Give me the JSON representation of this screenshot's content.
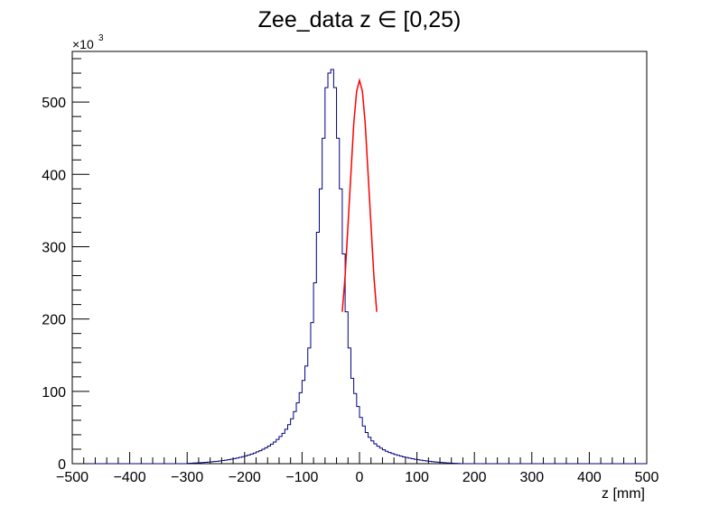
{
  "chart_data": {
    "type": "histogram",
    "title": "Zee_data z ∈ [0,25)",
    "xlabel": "z [mm]",
    "ylabel": "",
    "y_multiplier": "×10",
    "y_multiplier_exp": "3",
    "xlim": [
      -500,
      500
    ],
    "ylim": [
      0,
      570000
    ],
    "x_ticks": [
      -500,
      -400,
      -300,
      -200,
      -100,
      0,
      100,
      200,
      300,
      400,
      500
    ],
    "x_tick_labels": [
      "−500",
      "−400",
      "−300",
      "−200",
      "−100",
      "0",
      "100",
      "200",
      "300",
      "400",
      "500"
    ],
    "y_ticks": [
      0,
      100000,
      200000,
      300000,
      400000,
      500000
    ],
    "y_tick_labels": [
      "0",
      "100",
      "200",
      "300",
      "400",
      "500"
    ],
    "grid": false,
    "bin_width": 5,
    "series": [
      {
        "color": "#00007f",
        "style": "step",
        "bin_low_edges": [
          -500,
          -495,
          -490,
          -485,
          -480,
          -475,
          -470,
          -465,
          -460,
          -455,
          -450,
          -445,
          -440,
          -435,
          -430,
          -425,
          -420,
          -415,
          -410,
          -405,
          -400,
          -395,
          -390,
          -385,
          -380,
          -375,
          -370,
          -365,
          -360,
          -355,
          -350,
          -345,
          -340,
          -335,
          -330,
          -325,
          -320,
          -315,
          -310,
          -305,
          -300,
          -295,
          -290,
          -285,
          -280,
          -275,
          -270,
          -265,
          -260,
          -255,
          -250,
          -245,
          -240,
          -235,
          -230,
          -225,
          -220,
          -215,
          -210,
          -205,
          -200,
          -195,
          -190,
          -185,
          -180,
          -175,
          -170,
          -165,
          -160,
          -155,
          -150,
          -145,
          -140,
          -135,
          -130,
          -125,
          -120,
          -115,
          -110,
          -105,
          -100,
          -95,
          -90,
          -85,
          -80,
          -75,
          -70,
          -65,
          -60,
          -55,
          -50,
          -45,
          -40,
          -35,
          -30,
          -25,
          -20,
          -15,
          -10,
          -5,
          0,
          5,
          10,
          15,
          20,
          25,
          30,
          35,
          40,
          45,
          50,
          55,
          60,
          65,
          70,
          75,
          80,
          85,
          90,
          95,
          100,
          105,
          110,
          115,
          120,
          125,
          130,
          135,
          140,
          145,
          150,
          155,
          160,
          165,
          170,
          175,
          180,
          185,
          190,
          195,
          200,
          205,
          210,
          215,
          220,
          225,
          230,
          235,
          240,
          245,
          250,
          255,
          260,
          265,
          270,
          275,
          280,
          285,
          290,
          295,
          300,
          305,
          310,
          315,
          320,
          325,
          330,
          335,
          340,
          345,
          350,
          355,
          360,
          365,
          370,
          375,
          380,
          385,
          390,
          395,
          400,
          405,
          410,
          415,
          420,
          425,
          430,
          435,
          440,
          445,
          450,
          455,
          460,
          465,
          470,
          475,
          480,
          485,
          490,
          495
        ],
        "values": [
          0,
          0,
          0,
          0,
          0,
          0,
          0,
          0,
          0,
          0,
          0,
          0,
          0,
          0,
          0,
          0,
          0,
          0,
          0,
          0,
          0,
          0,
          0,
          0,
          0,
          0,
          0,
          0,
          0,
          0,
          0,
          0,
          0,
          0,
          0,
          0,
          0,
          0,
          0,
          0,
          500,
          700,
          900,
          1100,
          1300,
          1600,
          1900,
          2200,
          2500,
          2900,
          3300,
          3800,
          4300,
          4900,
          5500,
          6200,
          7000,
          7800,
          8700,
          9700,
          10800,
          12000,
          13300,
          14700,
          16300,
          18000,
          19900,
          22000,
          24300,
          27000,
          30000,
          33500,
          37500,
          42000,
          47500,
          54000,
          62000,
          72000,
          84000,
          98000,
          115000,
          135000,
          160000,
          195000,
          250000,
          320000,
          380000,
          450000,
          520000,
          540000,
          545000,
          520000,
          450000,
          380000,
          290000,
          210000,
          160000,
          118000,
          97000,
          79000,
          64000,
          52000,
          43000,
          36500,
          31500,
          27500,
          24200,
          21500,
          19200,
          17200,
          15500,
          14000,
          12700,
          11500,
          10400,
          9400,
          8500,
          7600,
          6800,
          6100,
          5400,
          4800,
          4200,
          3700,
          3200,
          2800,
          2400,
          2000,
          1700,
          1400,
          1100,
          900,
          700,
          500,
          300,
          0,
          0,
          0,
          0,
          0,
          0,
          0,
          0,
          0,
          0,
          0,
          0,
          0,
          0,
          0,
          0,
          0,
          0,
          0,
          0,
          0,
          0,
          0,
          0,
          0,
          0,
          0,
          0,
          0,
          0,
          0,
          0,
          0,
          0,
          0,
          0,
          0,
          0,
          0,
          0,
          0,
          0,
          0,
          0,
          0,
          0,
          0,
          0,
          0,
          0,
          0,
          0,
          0,
          0,
          0,
          0,
          0,
          0,
          0,
          0,
          0,
          0,
          0,
          0,
          0,
          0,
          0,
          0,
          0,
          0,
          0,
          0,
          0,
          0,
          0,
          0,
          0
        ]
      },
      {
        "color": "#ff0000",
        "style": "line",
        "x": [
          -30,
          -25,
          -20,
          -15,
          -10,
          -5,
          0,
          5,
          10,
          15,
          20,
          25,
          30
        ],
        "values": [
          210000,
          260000,
          330000,
          400000,
          470000,
          515000,
          530000,
          515000,
          470000,
          400000,
          330000,
          260000,
          210000
        ]
      }
    ]
  }
}
